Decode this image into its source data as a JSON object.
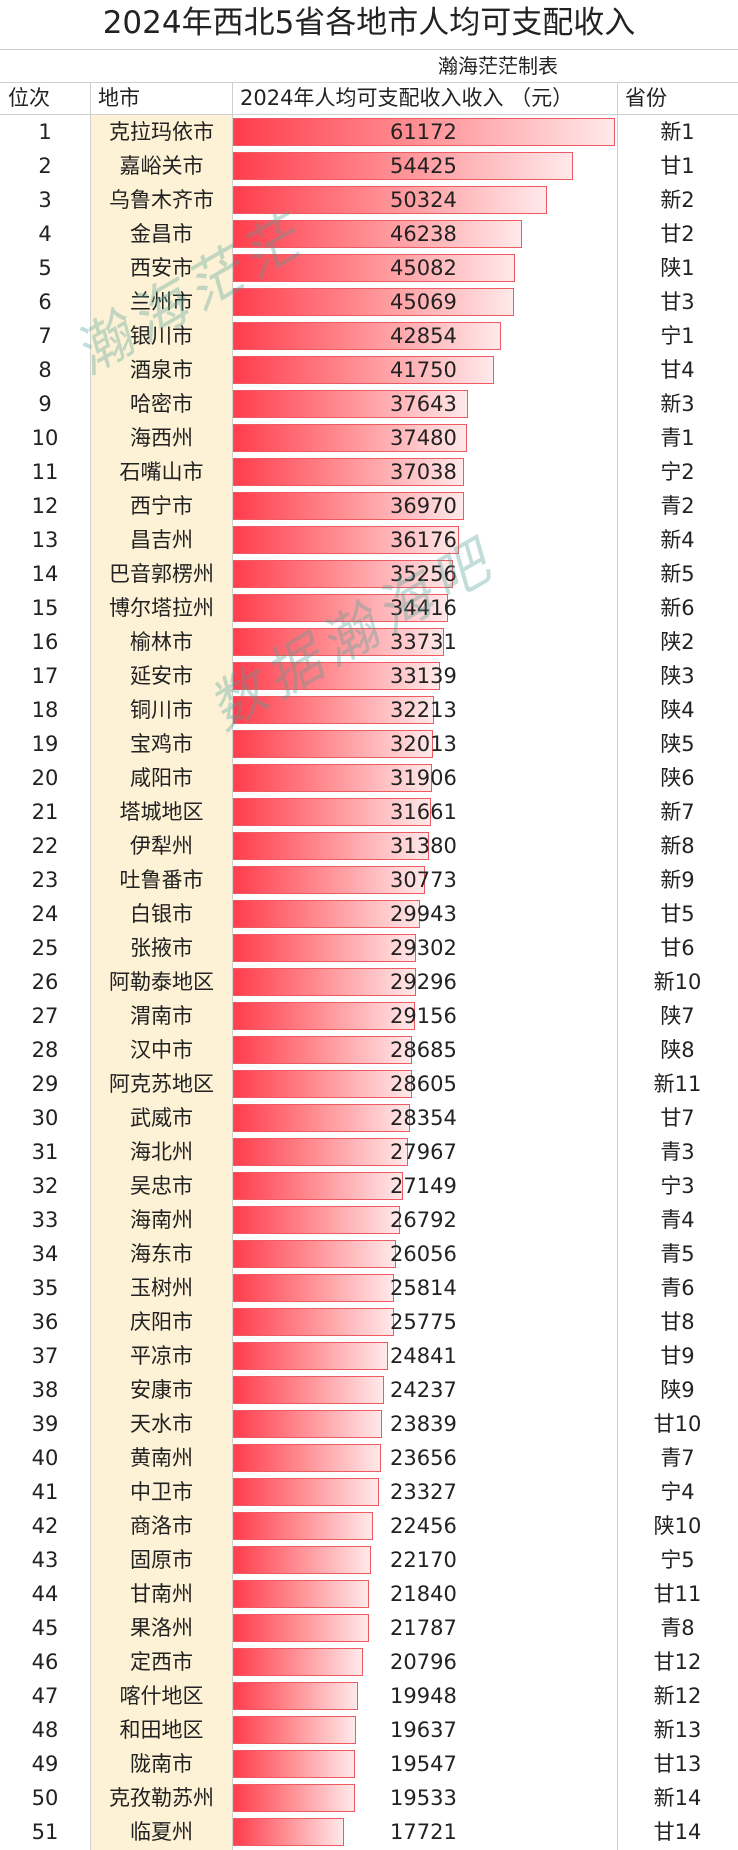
{
  "title": "2024年西北5省各地市人均可支配收入",
  "subtitle": "瀚海茫茫制表",
  "headers": {
    "rank": "位次",
    "city": "地市",
    "income": "2024年人均可支配收入收入 （元）",
    "province": "省份"
  },
  "watermarks": [
    "瀚海茫茫",
    "数据瀚海吧"
  ],
  "colors": {
    "bar_start": "#ff3d4d",
    "bar_end": "#ffe9ea",
    "city_column": "#fdf1d6",
    "watermark": "#50a096"
  },
  "chart_data": {
    "type": "bar",
    "orientation": "horizontal",
    "title": "2024年西北5省各地市人均可支配收入",
    "xlabel": "2024年人均可支配收入收入 （元）",
    "xlim": [
      0,
      61172
    ],
    "rows": [
      {
        "rank": "1",
        "city": "克拉玛依市",
        "value": 61172,
        "province": "新1"
      },
      {
        "rank": "2",
        "city": "嘉峪关市",
        "value": 54425,
        "province": "甘1"
      },
      {
        "rank": "3",
        "city": "乌鲁木齐市",
        "value": 50324,
        "province": "新2"
      },
      {
        "rank": "4",
        "city": "金昌市",
        "value": 46238,
        "province": "甘2"
      },
      {
        "rank": "5",
        "city": "西安市",
        "value": 45082,
        "province": "陕1"
      },
      {
        "rank": "6",
        "city": "兰州市",
        "value": 45069,
        "province": "甘3"
      },
      {
        "rank": "7",
        "city": "银川市",
        "value": 42854,
        "province": "宁1"
      },
      {
        "rank": "8",
        "city": "酒泉市",
        "value": 41750,
        "province": "甘4"
      },
      {
        "rank": "9",
        "city": "哈密市",
        "value": 37643,
        "province": "新3"
      },
      {
        "rank": "10",
        "city": "海西州",
        "value": 37480,
        "province": "青1"
      },
      {
        "rank": "11",
        "city": "石嘴山市",
        "value": 37038,
        "province": "宁2"
      },
      {
        "rank": "12",
        "city": "西宁市",
        "value": 36970,
        "province": "青2"
      },
      {
        "rank": "13",
        "city": "昌吉州",
        "value": 36176,
        "province": "新4"
      },
      {
        "rank": "14",
        "city": "巴音郭楞州",
        "value": 35256,
        "province": "新5"
      },
      {
        "rank": "15",
        "city": "博尔塔拉州",
        "value": 34416,
        "province": "新6"
      },
      {
        "rank": "16",
        "city": "榆林市",
        "value": 33731,
        "province": "陕2"
      },
      {
        "rank": "17",
        "city": "延安市",
        "value": 33139,
        "province": "陕3"
      },
      {
        "rank": "18",
        "city": "铜川市",
        "value": 32213,
        "province": "陕4"
      },
      {
        "rank": "19",
        "city": "宝鸡市",
        "value": 32013,
        "province": "陕5"
      },
      {
        "rank": "20",
        "city": "咸阳市",
        "value": 31906,
        "province": "陕6"
      },
      {
        "rank": "21",
        "city": "塔城地区",
        "value": 31661,
        "province": "新7"
      },
      {
        "rank": "22",
        "city": "伊犁州",
        "value": 31380,
        "province": "新8"
      },
      {
        "rank": "23",
        "city": "吐鲁番市",
        "value": 30773,
        "province": "新9"
      },
      {
        "rank": "24",
        "city": "白银市",
        "value": 29943,
        "province": "甘5"
      },
      {
        "rank": "25",
        "city": "张掖市",
        "value": 29302,
        "province": "甘6"
      },
      {
        "rank": "26",
        "city": "阿勒泰地区",
        "value": 29296,
        "province": "新10"
      },
      {
        "rank": "27",
        "city": "渭南市",
        "value": 29156,
        "province": "陕7"
      },
      {
        "rank": "28",
        "city": "汉中市",
        "value": 28685,
        "province": "陕8"
      },
      {
        "rank": "29",
        "city": "阿克苏地区",
        "value": 28605,
        "province": "新11"
      },
      {
        "rank": "30",
        "city": "武威市",
        "value": 28354,
        "province": "甘7"
      },
      {
        "rank": "31",
        "city": "海北州",
        "value": 27967,
        "province": "青3"
      },
      {
        "rank": "32",
        "city": "吴忠市",
        "value": 27149,
        "province": "宁3"
      },
      {
        "rank": "33",
        "city": "海南州",
        "value": 26792,
        "province": "青4"
      },
      {
        "rank": "34",
        "city": "海东市",
        "value": 26056,
        "province": "青5"
      },
      {
        "rank": "35",
        "city": "玉树州",
        "value": 25814,
        "province": "青6"
      },
      {
        "rank": "36",
        "city": "庆阳市",
        "value": 25775,
        "province": "甘8"
      },
      {
        "rank": "37",
        "city": "平凉市",
        "value": 24841,
        "province": "甘9"
      },
      {
        "rank": "38",
        "city": "安康市",
        "value": 24237,
        "province": "陕9"
      },
      {
        "rank": "39",
        "city": "天水市",
        "value": 23839,
        "province": "甘10"
      },
      {
        "rank": "40",
        "city": "黄南州",
        "value": 23656,
        "province": "青7"
      },
      {
        "rank": "41",
        "city": "中卫市",
        "value": 23327,
        "province": "宁4"
      },
      {
        "rank": "42",
        "city": "商洛市",
        "value": 22456,
        "province": "陕10"
      },
      {
        "rank": "43",
        "city": "固原市",
        "value": 22170,
        "province": "宁5"
      },
      {
        "rank": "44",
        "city": "甘南州",
        "value": 21840,
        "province": "甘11"
      },
      {
        "rank": "45",
        "city": "果洛州",
        "value": 21787,
        "province": "青8"
      },
      {
        "rank": "46",
        "city": "定西市",
        "value": 20796,
        "province": "甘12"
      },
      {
        "rank": "47",
        "city": "喀什地区",
        "value": 19948,
        "province": "新12"
      },
      {
        "rank": "48",
        "city": "和田地区",
        "value": 19637,
        "province": "新13"
      },
      {
        "rank": "49",
        "city": "陇南市",
        "value": 19547,
        "province": "甘13"
      },
      {
        "rank": "50",
        "city": "克孜勒苏州",
        "value": 19533,
        "province": "新14"
      },
      {
        "rank": "51",
        "city": "临夏州",
        "value": 17721,
        "province": "甘14"
      }
    ]
  }
}
